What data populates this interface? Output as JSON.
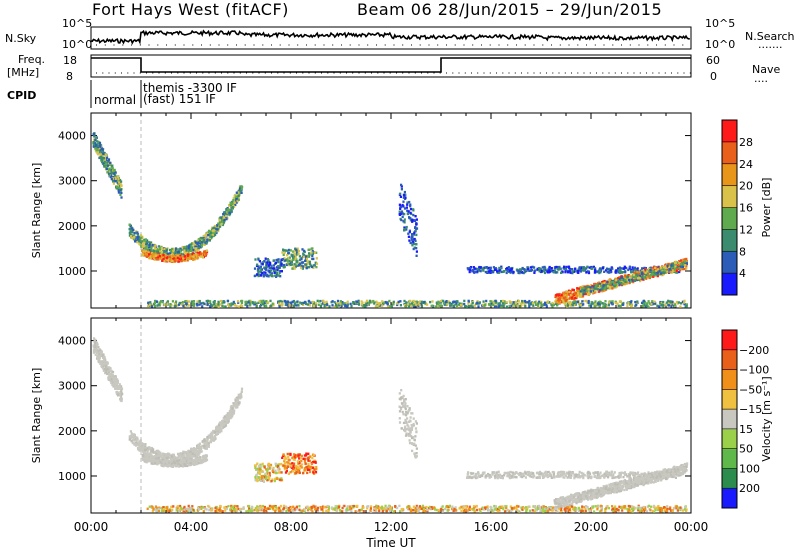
{
  "header": {
    "site": "Fort Hays West (fitACF)",
    "beam_date": "Beam 06  28/Jun/2015 – 29/Jun/2015"
  },
  "panels": {
    "nsky": {
      "left_label": "N.Sky",
      "left_ticks": [
        "10^5",
        "10^0"
      ],
      "right_ticks": [
        "10^5",
        "10^0"
      ],
      "right_label": "N.Search",
      "right_legend": "......."
    },
    "freq": {
      "left_label_1": "Freq.",
      "left_label_2": "[MHz]",
      "left_ticks": [
        "18",
        "8"
      ],
      "right_ticks": [
        "60",
        "0"
      ],
      "right_label": "Nave",
      "right_legend": "....",
      "freq_steps": [
        {
          "t": 0,
          "level": "high"
        },
        {
          "t": 2,
          "level": "low"
        },
        {
          "t": 14,
          "level": "high"
        },
        {
          "t": 24,
          "level": "high"
        }
      ]
    },
    "cpid": {
      "label": "CPID",
      "modes": [
        {
          "t_start": 0,
          "text": "normal"
        },
        {
          "t_start": 2,
          "text": "themis -3300 IF"
        },
        {
          "t_start": 2,
          "text": "(fast) 151 IF"
        }
      ]
    }
  },
  "chart_data": [
    {
      "type": "scatter",
      "title": "",
      "ylabel": "Slant Range [km]",
      "xlabel": "",
      "xlim": [
        0,
        24
      ],
      "ylim": [
        180,
        4500
      ],
      "yticks": [
        1000,
        2000,
        3000,
        4000
      ],
      "colorbar": {
        "label": "Power [dB]",
        "ticks": [
          "4",
          "8",
          "12",
          "16",
          "20",
          "24",
          "28"
        ],
        "colors": [
          "#1a1aff",
          "#2b5cb8",
          "#3b8c6e",
          "#5fa94e",
          "#d8c24a",
          "#e8961a",
          "#e8601a",
          "#ff1a1a"
        ]
      },
      "features": [
        {
          "name": "near-range band",
          "t": [
            2.2,
            23.8
          ],
          "range": [
            200,
            450
          ]
        },
        {
          "name": "morning arc",
          "t": [
            1.5,
            6.0
          ],
          "range": [
            1200,
            2700
          ]
        },
        {
          "name": "evening arc",
          "t": [
            18.5,
            23.8
          ],
          "range": [
            300,
            1300
          ]
        },
        {
          "name": "midday band",
          "t": [
            15.0,
            23.5
          ],
          "range": [
            900,
            1200
          ]
        }
      ]
    },
    {
      "type": "scatter",
      "title": "",
      "ylabel": "Slant Range [km]",
      "xlabel": "Time UT",
      "xlim": [
        0,
        24
      ],
      "ylim": [
        180,
        4500
      ],
      "yticks": [
        1000,
        2000,
        3000,
        4000
      ],
      "xticks": [
        "00:00",
        "04:00",
        "08:00",
        "12:00",
        "16:00",
        "20:00",
        "00:00"
      ],
      "colorbar": {
        "label": "Velocity [m s⁻¹]",
        "ticks": [
          "200",
          "100",
          "50",
          "15",
          "−15",
          "−50",
          "−100",
          "−200"
        ],
        "colors": [
          "#1a1aff",
          "#2b8c4e",
          "#5fb84a",
          "#9bd04a",
          "#c8c8c0",
          "#f0c040",
          "#f0901a",
          "#e8601a",
          "#ff1a1a"
        ]
      }
    }
  ]
}
